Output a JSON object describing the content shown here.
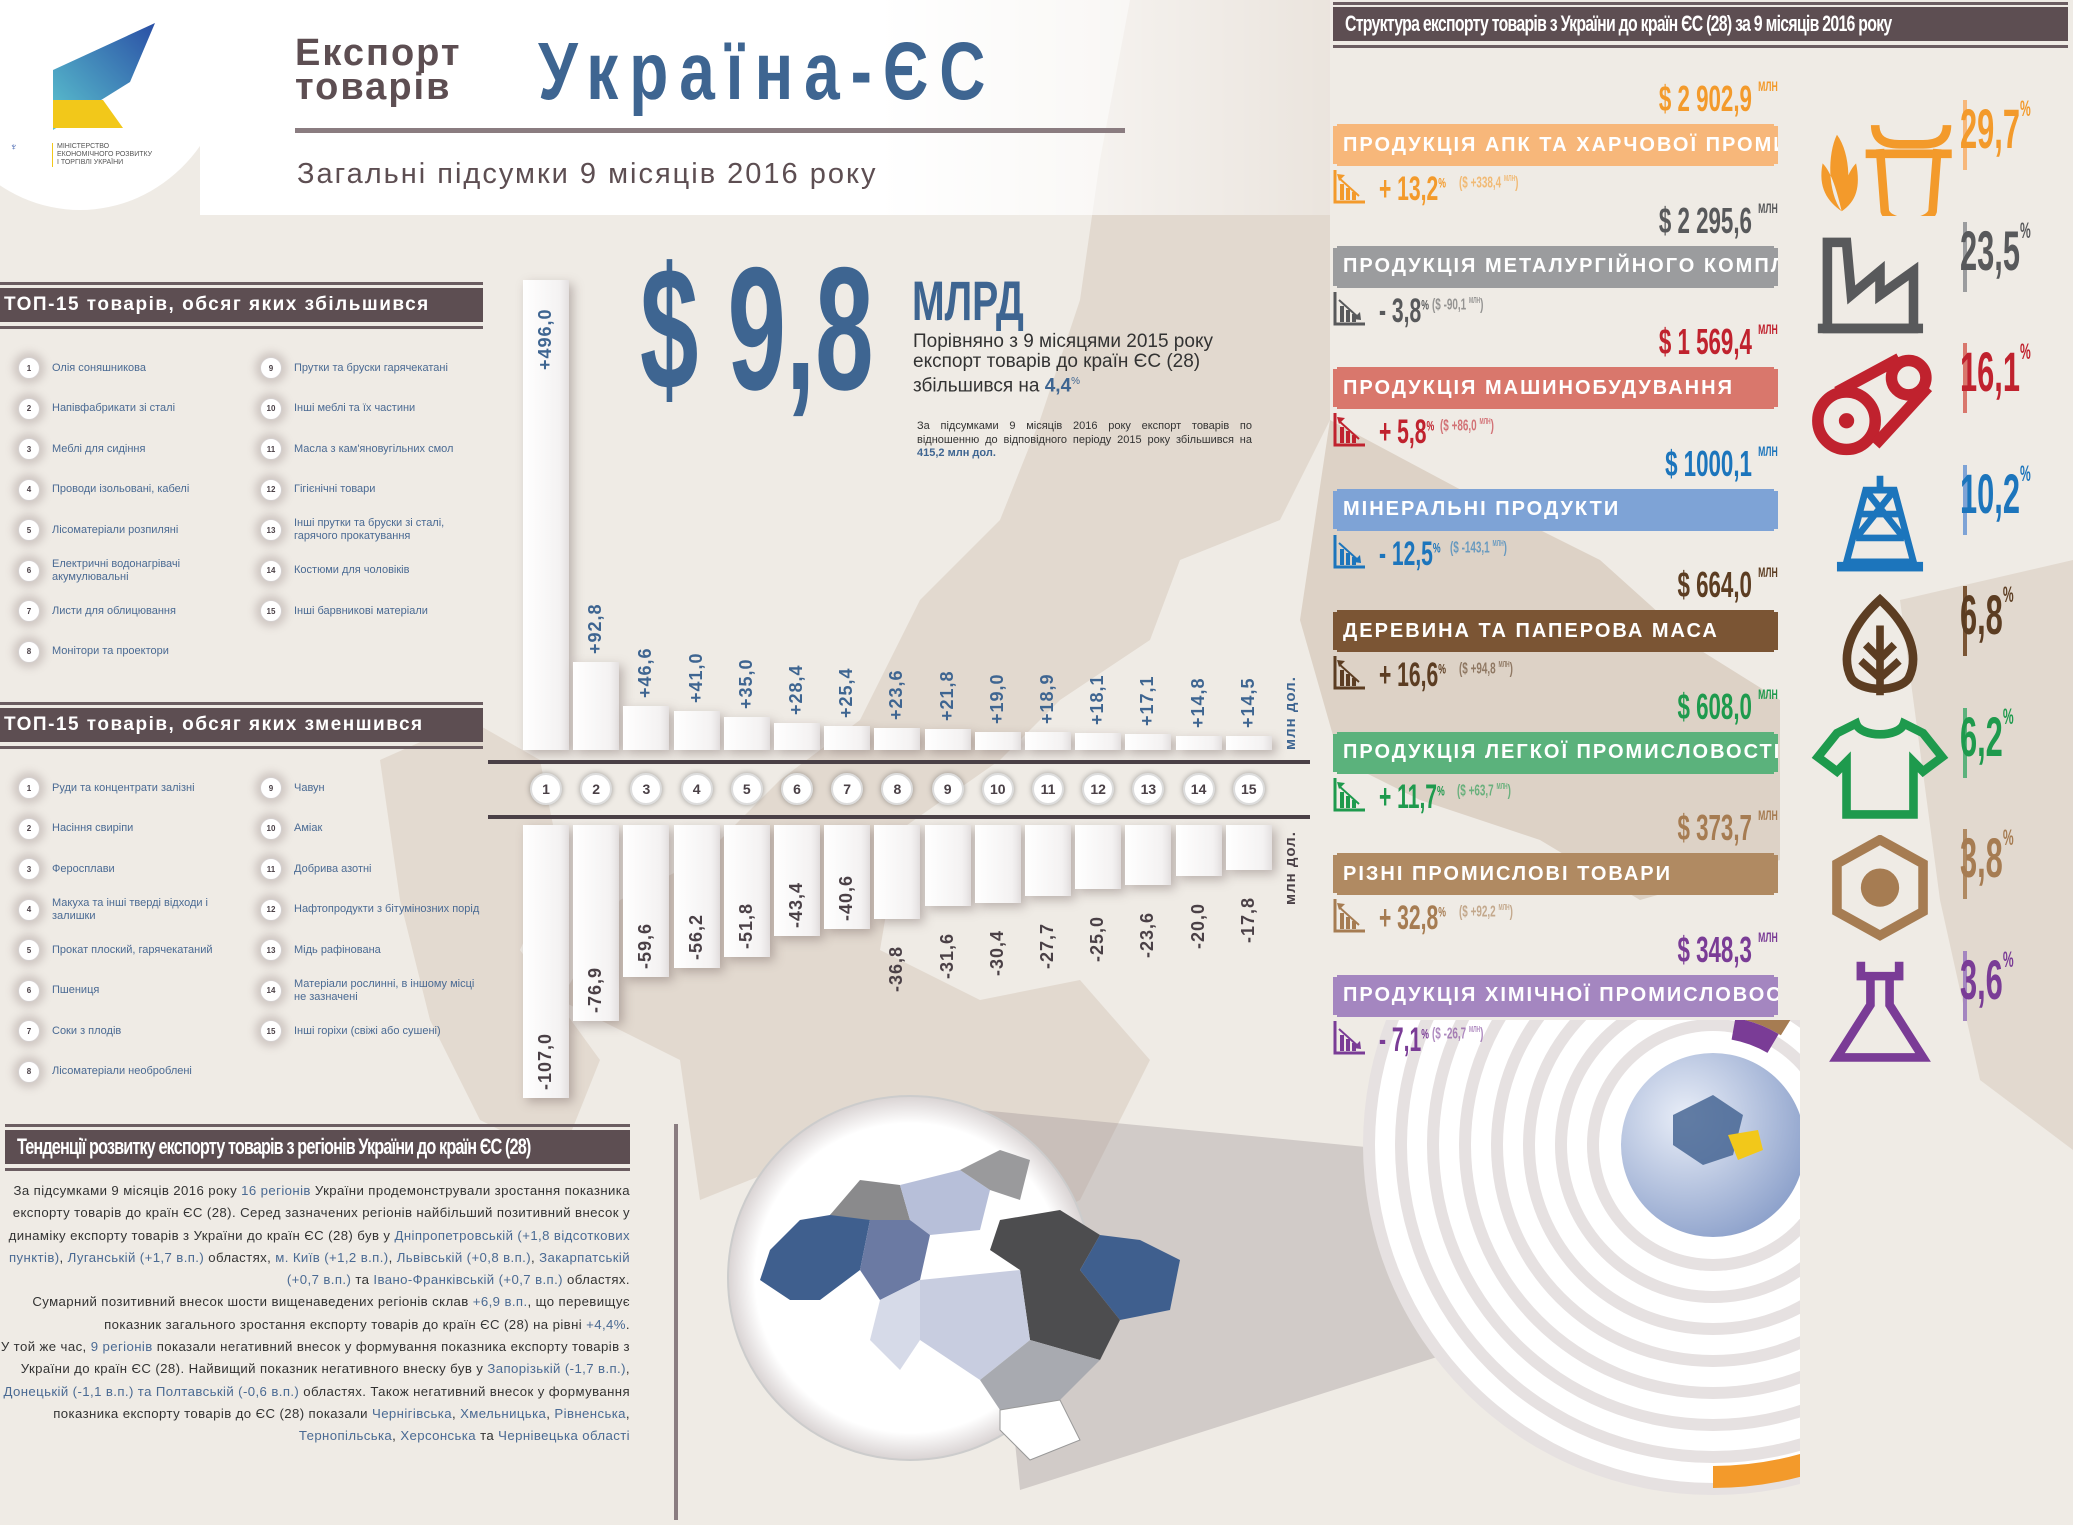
{
  "header": {
    "title_left_line1": "Експорт",
    "title_left_line2": "товарів",
    "title_main": "Україна-ЄС",
    "subtitle": "Загальні підсумки 9 місяців 2016 року",
    "ministry": [
      "МІНІСТЕРСТВО",
      "ЕКОНОМІЧНОГО РОЗВИТКУ",
      "І ТОРГІВЛІ УКРАЇНИ"
    ]
  },
  "summary": {
    "big_value": "$ 9,8",
    "unit": "МЛРД",
    "text": "Порівняно з 9 місяцями 2015 року експорт товарів до країн ЄС (28) збільшився на ",
    "pct": "4,4",
    "pct_sign": "%",
    "small_text": "За підсумками 9 місяців 2016 року експорт товарів по відношенню до відповідного періоду 2015 року збільшився на ",
    "small_value": "415,2 млн дол."
  },
  "top_increase": {
    "title": "ТОП-15 товарів, обсяг яких збільшився",
    "items": [
      "Олія соняшникова",
      "Напівфабрикати зі сталі",
      "Меблі для сидіння",
      "Проводи ізольовані, кабелі",
      "Лісоматеріали розпиляні",
      "Електричні водонагрівачі акумулювальні",
      "Листи для облицювання",
      "Монітори та проектори",
      "Прутки та бруски гарячекатані",
      "Інші меблі та їх частини",
      "Масла з кам'яновугільних смол",
      "Гігієнічні товари",
      "Інші прутки та бруски зі сталі, гарячого прокатування",
      "Костюми для чоловіків",
      "Інші барвникові матеріали"
    ]
  },
  "top_decrease": {
    "title": "ТОП-15 товарів, обсяг яких зменшився",
    "items": [
      "Руди та концентрати залізні",
      "Насіння свиріпи",
      "Феросплави",
      "Макуха та інші тверді відходи і залишки",
      "Прокат плоский, гарячекатаний",
      "Пшениця",
      "Соки з плодів",
      "Лісоматеріали необроблені",
      "Чавун",
      "Аміак",
      "Добрива азотні",
      "Нафтопродукти з бітумінозних порід",
      "Мідь рафінована",
      "Матеріали рослинні, в іншому місці не зазначені",
      "Інші горіхи (свіжі або сушені)"
    ]
  },
  "chart_data": [
    {
      "type": "bar",
      "categories": [
        "1",
        "2",
        "3",
        "4",
        "5",
        "6",
        "7",
        "8",
        "9",
        "10",
        "11",
        "12",
        "13",
        "14",
        "15"
      ],
      "values": [
        496.0,
        92.8,
        46.6,
        41.0,
        35.0,
        28.4,
        25.4,
        23.6,
        21.8,
        19.0,
        18.9,
        18.1,
        17.1,
        14.8,
        14.5
      ],
      "labels": [
        "+496,0",
        "+92,8",
        "+46,6",
        "+41,0",
        "+35,0",
        "+28,4",
        "+25,4",
        "+23,6",
        "+21,8",
        "+19,0",
        "+18,9",
        "+18,1",
        "+17,1",
        "+14,8",
        "+14,5"
      ],
      "ylabel": "млн дол."
    },
    {
      "type": "bar",
      "categories": [
        "1",
        "2",
        "3",
        "4",
        "5",
        "6",
        "7",
        "8",
        "9",
        "10",
        "11",
        "12",
        "13",
        "14",
        "15"
      ],
      "values": [
        -107.0,
        -76.9,
        -59.6,
        -56.2,
        -51.8,
        -43.4,
        -40.6,
        -36.8,
        -31.6,
        -30.4,
        -27.7,
        -25.0,
        -23.6,
        -20.0,
        -17.8
      ],
      "labels": [
        "-107,0",
        "-76,9",
        "-59,6",
        "-56,2",
        "-51,8",
        "-43,4",
        "-40,6",
        "-36,8",
        "-31,6",
        "-30,4",
        "-27,7",
        "-25,0",
        "-23,6",
        "-20,0",
        "-17,8"
      ],
      "ylabel": "млн дол."
    }
  ],
  "regions": {
    "title": "Тенденції розвитку експорту товарів з регіонів України до країн ЄС (28)",
    "paragraphs": [
      [
        {
          "t": "За підсумками 9 місяців 2016 року "
        },
        {
          "t": "16 регіонів",
          "hl": true
        },
        {
          "t": " України продемонстрували зростання показника експорту товарів до країн ЄС (28). Серед зазначених регіонів найбільший позитивний внесок у динаміку експорту товарів з України до країн ЄС (28) був у "
        },
        {
          "t": "Дніпропетровській (+1,8 відсоткових пунктів)",
          "hl": true
        },
        {
          "t": ", "
        },
        {
          "t": "Луганській (+1,7 в.п.)",
          "hl": true
        },
        {
          "t": " областях, "
        },
        {
          "t": "м. Київ (+1,2 в.п.)",
          "hl": true
        },
        {
          "t": ", "
        },
        {
          "t": "Львівській (+0,8 в.п.)",
          "hl": true
        },
        {
          "t": ", "
        },
        {
          "t": "Закарпатській (+0,7 в.п.)",
          "hl": true
        },
        {
          "t": " та "
        },
        {
          "t": "Івано-Франківській (+0,7 в.п.)",
          "hl": true
        },
        {
          "t": " областях."
        }
      ],
      [
        {
          "t": "Сумарний позитивний внесок шости вищенаведених регіонів склав "
        },
        {
          "t": "+6,9 в.п.",
          "hl": true
        },
        {
          "t": ", що перевищує показник загального зростання експорту товарів до країн ЄС (28) на рівні "
        },
        {
          "t": "+4,4%",
          "hl": true
        },
        {
          "t": "."
        }
      ],
      [
        {
          "t": "У той же час, "
        },
        {
          "t": "9 регіонів",
          "hl": true
        },
        {
          "t": " показали негативний внесок у формування показника експорту товарів з України до країн ЄС (28). Найвищий показник негативного внеску був у "
        },
        {
          "t": "Запорізькій (-1,7 в.п.)",
          "hl": true
        },
        {
          "t": ", "
        },
        {
          "t": "Донецькій (-1,1 в.п.) та Полтавській (-0,6 в.п.)",
          "hl": true
        },
        {
          "t": " областях. Також негативний внесок у формування показника експорту товарів до ЄС (28) показали "
        },
        {
          "t": "Чернігівська",
          "hl": true
        },
        {
          "t": ", "
        },
        {
          "t": "Хмельницька",
          "hl": true
        },
        {
          "t": ", "
        },
        {
          "t": "Рівненська",
          "hl": true
        },
        {
          "t": ", "
        },
        {
          "t": "Тернопільська",
          "hl": true
        },
        {
          "t": ", "
        },
        {
          "t": "Херсонська",
          "hl": true
        },
        {
          "t": " та "
        },
        {
          "t": "Чернівецька області",
          "hl": true
        }
      ]
    ]
  },
  "structure": {
    "title": "Структура експорту товарів з України до країн ЄС (28)  за 9 місяців  2016 року",
    "unit": "МЛН",
    "categories": [
      {
        "name": "ПРОДУКЦІЯ АПК ТА ХАРЧОВОЇ ПРОМИСЛОВОСТІ",
        "value": "$  2 902,9",
        "change": "+ 13,2",
        "change_abs": "($  +338,4",
        "share": "29,7",
        "trend": "up",
        "icon": "wheat-cow-icon",
        "color": "#f39a2b",
        "band": "#f7b77a"
      },
      {
        "name": "ПРОДУКЦІЯ МЕТАЛУРГІЙНОГО КОМПЛЕКСУ",
        "value": "$  2 295,6",
        "change": "- 3,8",
        "change_abs": "($  -90,1",
        "share": "23,5",
        "trend": "down",
        "icon": "factory-icon",
        "color": "#58595b",
        "band": "#9b9c9e"
      },
      {
        "name": "ПРОДУКЦІЯ МАШИНОБУДУВАННЯ",
        "value": "$  1 569,4",
        "change": "+ 5,8",
        "change_abs": "($  +86,0",
        "share": "16,1",
        "trend": "up",
        "icon": "gear-belt-icon",
        "color": "#c0222e",
        "band": "#d9776c"
      },
      {
        "name": "МІНЕРАЛЬНІ ПРОДУКТИ",
        "value": "$  1000,1",
        "change": "- 12,5",
        "change_abs": "($  -143,1",
        "share": "10,2",
        "trend": "down",
        "icon": "oil-derrick-icon",
        "color": "#1c75bc",
        "band": "#7ea3d6"
      },
      {
        "name": "ДЕРЕВИНА ТА ПАПЕРОВА МАСА",
        "value": "$ 664,0",
        "change": "+ 16,6",
        "change_abs": "($  +94,8",
        "share": "6,8",
        "trend": "up",
        "icon": "tree-leaf-icon",
        "color": "#5c3d22",
        "band": "#7b5534"
      },
      {
        "name": "ПРОДУКЦІЯ ЛЕГКОЇ ПРОМИСЛОВОСТІ",
        "value": "$  608,0",
        "change": "+ 11,7",
        "change_abs": "($  +63,7",
        "share": "6,2",
        "trend": "up",
        "icon": "tshirt-icon",
        "color": "#1e9a4d",
        "band": "#5bb27c"
      },
      {
        "name": "РІЗНІ ПРОМИСЛОВІ ТОВАРИ",
        "value": "$  373,7",
        "change": "+ 32,8",
        "change_abs": "($  +92,2",
        "share": "3,8",
        "trend": "up",
        "icon": "hexagon-nut-icon",
        "color": "#a67c52",
        "band": "#b08a62"
      },
      {
        "name": "ПРОДУКЦІЯ ХІМІЧНОЇ ПРОМИСЛОВОСТІ",
        "value": "$  348,3",
        "change": "- 7,1",
        "change_abs": "($  -26,7",
        "share": "3,6",
        "trend": "down",
        "icon": "flask-icon",
        "color": "#7a3c96",
        "band": "#a486c0"
      }
    ]
  },
  "colors": {
    "accent_blue": "#3e6591",
    "banner": "#5d4e52",
    "text_blue": "#4a6a93"
  }
}
